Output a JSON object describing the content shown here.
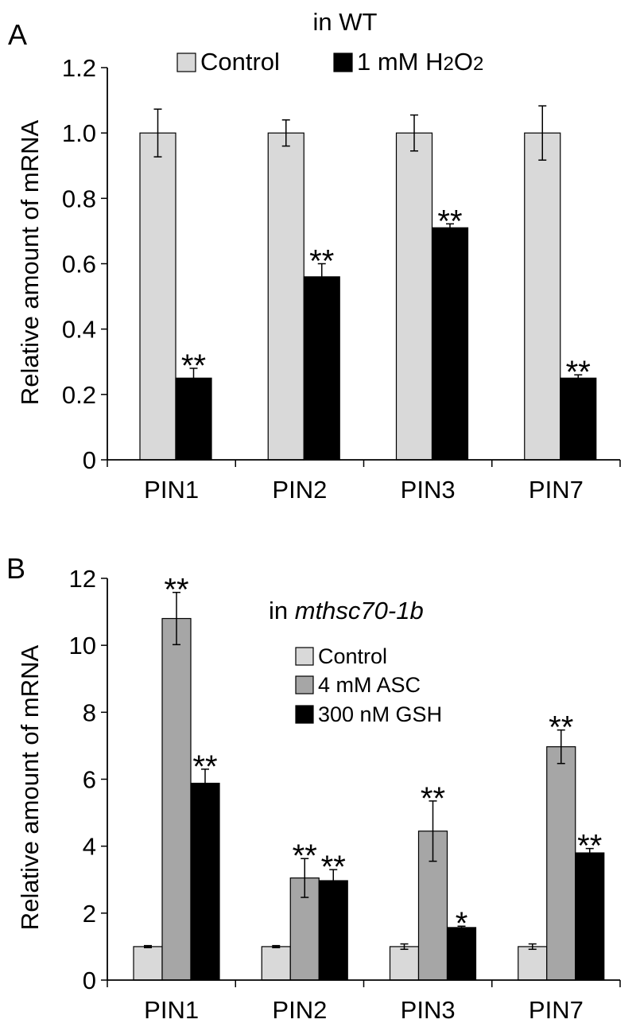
{
  "colors": {
    "control": "#d9d9d9",
    "asc": "#a6a6a6",
    "h2o2": "#000000",
    "gsh": "#000000",
    "axis": "#000000"
  },
  "chart_data": [
    {
      "type": "bar",
      "panel_label": "A",
      "title": "in WT",
      "xlabel": "",
      "ylabel": "Relative amount of mRNA",
      "ylim": [
        0,
        1.2
      ],
      "yticks": [
        0,
        0.2,
        0.4,
        0.6,
        0.8,
        1.0,
        1.2
      ],
      "ytick_labels": [
        "0",
        "0.2",
        "0.4",
        "0.6",
        "0.8",
        "1.0",
        "1.2"
      ],
      "categories": [
        "PIN1",
        "PIN2",
        "PIN3",
        "PIN7"
      ],
      "legend_position": "top",
      "series": [
        {
          "name": "Control",
          "legend_parts": [
            "Control"
          ],
          "color": "#d9d9d9",
          "values": [
            1.0,
            1.0,
            1.0,
            1.0
          ],
          "errors": [
            0.073,
            0.04,
            0.055,
            0.083
          ],
          "significance": [
            "",
            "",
            "",
            ""
          ]
        },
        {
          "name": "1 mM H2O2",
          "legend_parts": [
            "1 mM H",
            "2",
            "O",
            "2"
          ],
          "color": "#000000",
          "values": [
            0.25,
            0.56,
            0.71,
            0.25
          ],
          "errors": [
            0.03,
            0.04,
            0.012,
            0.01
          ],
          "significance": [
            "**",
            "**",
            "**",
            "**"
          ]
        }
      ]
    },
    {
      "type": "bar",
      "panel_label": "B",
      "title_prefix": "in ",
      "title_italic": "mthsc70-1b",
      "xlabel": "",
      "ylabel": "Relative amount of mRNA",
      "ylim": [
        0,
        12
      ],
      "yticks": [
        0,
        2,
        4,
        6,
        8,
        10,
        12
      ],
      "ytick_labels": [
        "0",
        "2",
        "4",
        "6",
        "8",
        "10",
        "12"
      ],
      "categories": [
        "PIN1",
        "PIN2",
        "PIN3",
        "PIN7"
      ],
      "legend_position": "top-right",
      "series": [
        {
          "name": "Control",
          "legend_parts": [
            "Control"
          ],
          "color": "#d9d9d9",
          "values": [
            1.0,
            1.0,
            1.0,
            1.0
          ],
          "errors": [
            0.03,
            0.03,
            0.08,
            0.08
          ],
          "significance": [
            "",
            "",
            "",
            ""
          ]
        },
        {
          "name": "4 mM ASC",
          "legend_parts": [
            "4 mM ASC"
          ],
          "color": "#a6a6a6",
          "values": [
            10.8,
            3.05,
            4.45,
            6.97
          ],
          "errors": [
            0.78,
            0.58,
            0.9,
            0.5
          ],
          "significance": [
            "**",
            "**",
            "**",
            "**"
          ]
        },
        {
          "name": "300 nM GSH",
          "legend_parts": [
            "300 nM GSH"
          ],
          "color": "#000000",
          "values": [
            5.88,
            2.97,
            1.57,
            3.8
          ],
          "errors": [
            0.42,
            0.33,
            0.04,
            0.13
          ],
          "significance": [
            "**",
            "**",
            "*",
            "**"
          ]
        }
      ]
    }
  ]
}
